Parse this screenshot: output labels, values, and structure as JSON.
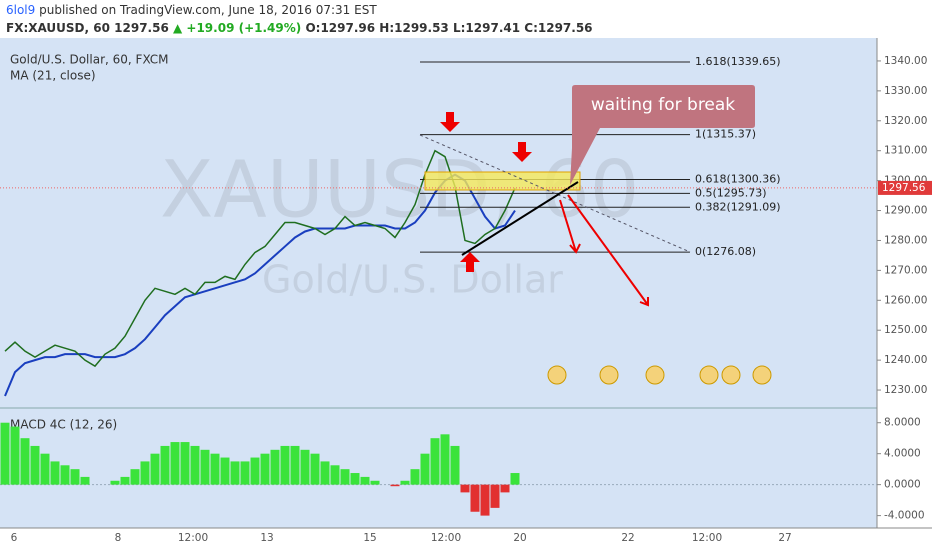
{
  "header": {
    "author": "6lol9",
    "published": "published on TradingView.com, June 18, 2016 07:31 EST",
    "symbol": "FX:XAUUSD, 60",
    "last": "1297.56",
    "change": "+19.09 (+1.49%)",
    "open": "O:1297.96",
    "high": "H:1299.53",
    "low": "L:1297.41",
    "close": "C:1297.56"
  },
  "price_pane": {
    "title": "Gold/U.S. Dollar, 60, FXCM",
    "indicator": "MA (21, close)",
    "watermark": "XAUUSD, 60",
    "watermark_sub": "Gold/U.S. Dollar",
    "ylim": [
      1224,
      1347
    ],
    "yticks": [
      {
        "value": 1340,
        "label": "1340.00"
      },
      {
        "value": 1330,
        "label": "1330.00"
      },
      {
        "value": 1320,
        "label": "1320.00"
      },
      {
        "value": 1310,
        "label": "1310.00"
      },
      {
        "value": 1300,
        "label": "1300.00"
      },
      {
        "value": 1290,
        "label": "1290.00"
      },
      {
        "value": 1280,
        "label": "1280.00"
      },
      {
        "value": 1270,
        "label": "1270.00"
      },
      {
        "value": 1260,
        "label": "1260.00"
      },
      {
        "value": 1250,
        "label": "1250.00"
      },
      {
        "value": 1240,
        "label": "1240.00"
      },
      {
        "value": 1230,
        "label": "1230.00"
      }
    ],
    "price_tag": {
      "value": 1297.56,
      "label": "1297.56"
    },
    "close": [
      1243,
      1246,
      1243,
      1241,
      1243,
      1245,
      1244,
      1243,
      1240,
      1238,
      1242,
      1244,
      1248,
      1254,
      1260,
      1264,
      1263,
      1262,
      1264,
      1262,
      1266,
      1266,
      1268,
      1267,
      1272,
      1276,
      1278,
      1282,
      1286,
      1286,
      1285,
      1284,
      1282,
      1284,
      1288,
      1285,
      1286,
      1285,
      1284,
      1281,
      1286,
      1292,
      1302,
      1310,
      1308,
      1298,
      1280,
      1279,
      1282,
      1284,
      1290,
      1297.56
    ],
    "ma": [
      1228,
      1236,
      1239,
      1240,
      1241,
      1241,
      1242,
      1242,
      1242,
      1241,
      1241,
      1241,
      1242,
      1244,
      1247,
      1251,
      1255,
      1258,
      1261,
      1262,
      1263,
      1264,
      1265,
      1266,
      1267,
      1269,
      1272,
      1275,
      1278,
      1281,
      1283,
      1284,
      1284,
      1284,
      1284,
      1285,
      1285,
      1285,
      1285,
      1284,
      1284,
      1286,
      1290,
      1296,
      1300,
      1302,
      1300,
      1294,
      1288,
      1284,
      1285,
      1290
    ],
    "fib_levels": [
      {
        "value": 1339.65,
        "label": "1.618(1339.65)"
      },
      {
        "value": 1315.37,
        "label": "1(1315.37)"
      },
      {
        "value": 1300.36,
        "label": "0.618(1300.36)"
      },
      {
        "value": 1295.73,
        "label": "0.5(1295.73)"
      },
      {
        "value": 1291.09,
        "label": "0.382(1291.09)"
      },
      {
        "value": 1276.08,
        "label": "0(1276.08)"
      }
    ],
    "annotation": "waiting for break"
  },
  "macd_pane": {
    "title": "MACD 4C (12, 26)",
    "ylim": [
      -5.6,
      9.9
    ],
    "yticks": [
      {
        "value": 8,
        "label": "8.0000"
      },
      {
        "value": 4,
        "label": "4.0000"
      },
      {
        "value": 0,
        "label": "0.0000"
      },
      {
        "value": -4,
        "label": "-4.0000"
      }
    ],
    "histogram": [
      8,
      7.5,
      6,
      5,
      4,
      3,
      2.5,
      2,
      1,
      0,
      0,
      0.5,
      1,
      2,
      3,
      4,
      5,
      5.5,
      5.5,
      5,
      4.5,
      4,
      3.5,
      3,
      3,
      3.5,
      4,
      4.5,
      5,
      5,
      4.5,
      4,
      3,
      2.5,
      2,
      1.5,
      1,
      0.5,
      0,
      -0.2,
      0.5,
      2,
      4,
      6,
      6.5,
      5,
      -1,
      -3.5,
      -4,
      -3,
      -1,
      1.5
    ]
  },
  "time_axis": [
    "6",
    "8",
    "12:00",
    "13",
    "15",
    "12:00",
    "20",
    "22",
    "12:00",
    "27"
  ]
}
